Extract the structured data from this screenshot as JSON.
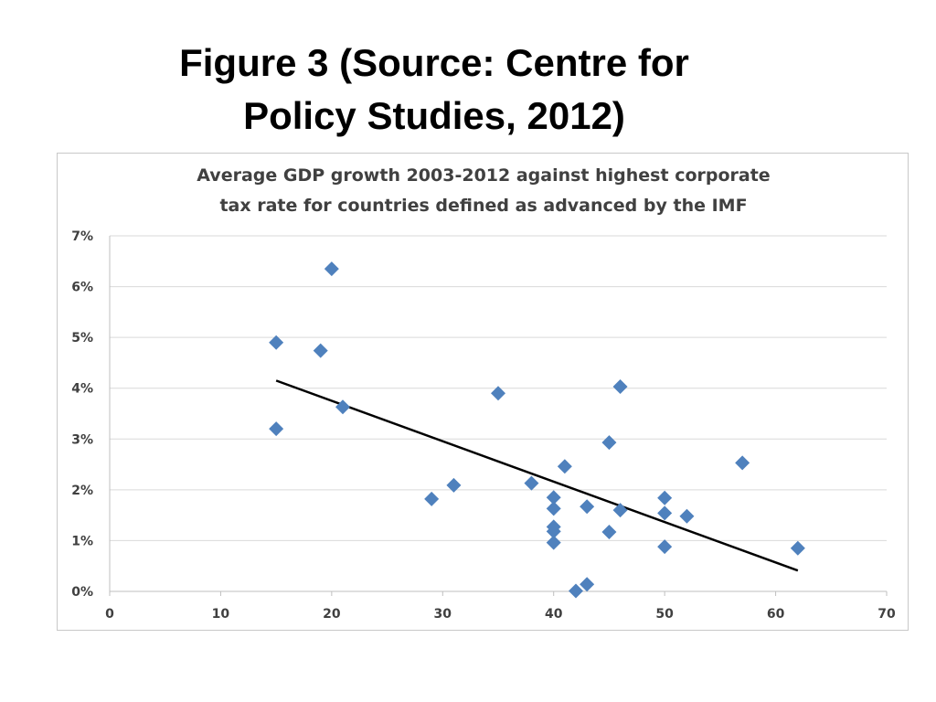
{
  "slide": {
    "title_line1": "Figure 3 (Source: Centre for",
    "title_line2": "Policy Studies, 2012)"
  },
  "chart_data": {
    "type": "scatter",
    "title": "Average GDP growth 2003-2012 against highest corporate tax rate for countries defined as advanced by the IMF",
    "title_lines": [
      "Average GDP growth 2003-2012 against highest corporate",
      "tax rate for countries defined as advanced by the IMF"
    ],
    "xlabel": "",
    "ylabel": "",
    "xlim": [
      0,
      70
    ],
    "ylim": [
      0,
      0.07
    ],
    "x_ticks": [
      0,
      10,
      20,
      30,
      40,
      50,
      60,
      70
    ],
    "x_tick_labels": [
      "0",
      "10",
      "20",
      "30",
      "40",
      "50",
      "60",
      "70"
    ],
    "y_ticks": [
      0,
      0.01,
      0.02,
      0.03,
      0.04,
      0.05,
      0.06,
      0.07
    ],
    "y_tick_labels": [
      "0%",
      "1%",
      "2%",
      "3%",
      "4%",
      "5%",
      "6%",
      "7%"
    ],
    "grid": "horizontal",
    "legend": "none",
    "marker_color": "#4F81BD",
    "marker_shape": "diamond",
    "trendline_color": "#000000",
    "points": [
      {
        "x": 15,
        "y": 0.049
      },
      {
        "x": 15,
        "y": 0.032
      },
      {
        "x": 19,
        "y": 0.0474
      },
      {
        "x": 20,
        "y": 0.0635
      },
      {
        "x": 21,
        "y": 0.0363
      },
      {
        "x": 29,
        "y": 0.0182
      },
      {
        "x": 31,
        "y": 0.0209
      },
      {
        "x": 35,
        "y": 0.039
      },
      {
        "x": 38,
        "y": 0.0213
      },
      {
        "x": 40,
        "y": 0.0185
      },
      {
        "x": 40,
        "y": 0.0163
      },
      {
        "x": 40,
        "y": 0.0127
      },
      {
        "x": 40,
        "y": 0.0118
      },
      {
        "x": 40,
        "y": 0.0096
      },
      {
        "x": 41,
        "y": 0.0246
      },
      {
        "x": 42,
        "y": 0.0001
      },
      {
        "x": 43,
        "y": 0.0014
      },
      {
        "x": 43,
        "y": 0.0167
      },
      {
        "x": 45,
        "y": 0.0293
      },
      {
        "x": 45,
        "y": 0.0117
      },
      {
        "x": 46,
        "y": 0.0403
      },
      {
        "x": 46,
        "y": 0.016
      },
      {
        "x": 50,
        "y": 0.0184
      },
      {
        "x": 50,
        "y": 0.0154
      },
      {
        "x": 50,
        "y": 0.0088
      },
      {
        "x": 52,
        "y": 0.0148
      },
      {
        "x": 57,
        "y": 0.0253
      },
      {
        "x": 62,
        "y": 0.0085
      }
    ],
    "trendline": {
      "type": "linear",
      "x": [
        15,
        62
      ],
      "y": [
        0.0415,
        0.0041
      ]
    }
  }
}
